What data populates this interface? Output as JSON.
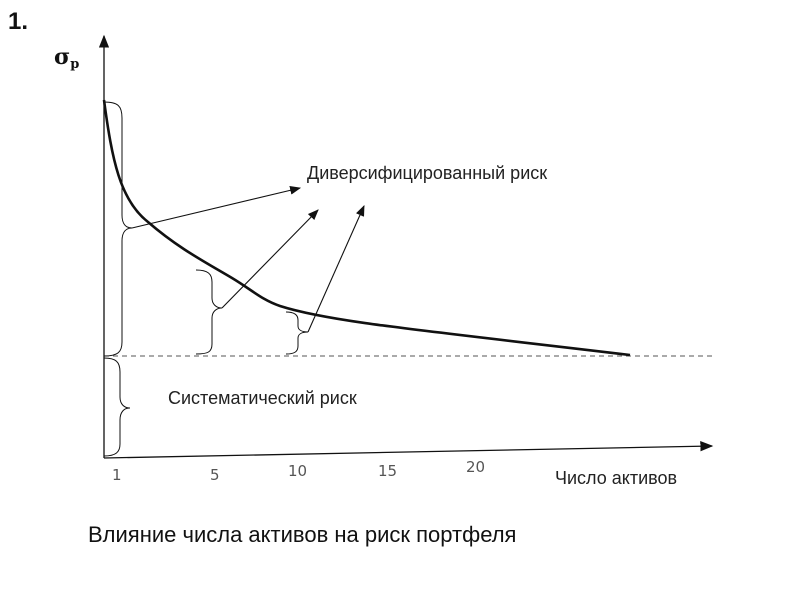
{
  "slide": {
    "number": "1."
  },
  "axes": {
    "y_symbol": "σ",
    "y_subscript": "p",
    "x_title": "Число активов",
    "x_ticks": [
      "1",
      "5",
      "10",
      "15",
      "20"
    ]
  },
  "labels": {
    "diversified": "Диверсифицированный риск",
    "systematic": "Систематический риск"
  },
  "caption": "Влияние числа активов на риск портфеля",
  "colors": {
    "line": "#111111",
    "dashed": "#555555"
  }
}
